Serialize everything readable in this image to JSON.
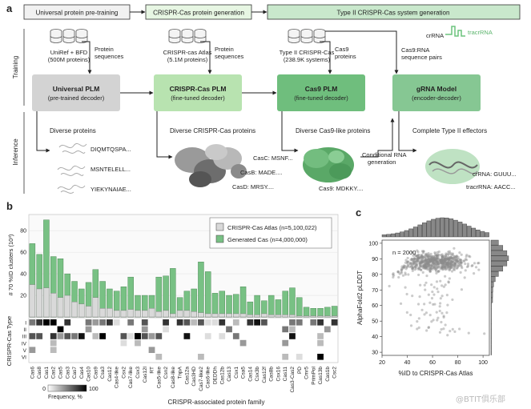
{
  "panel_labels": {
    "a": "a",
    "b": "b",
    "c": "c"
  },
  "panel_a": {
    "stages": [
      "Universal protein pre-training",
      "CRISPR-Cas protein generation",
      "Type II CRISPR-Cas system generation"
    ],
    "row_labels": {
      "training": "Training",
      "inference": "Inference"
    },
    "data_sources": [
      {
        "line1": "UniRef + BFD",
        "line2": "(500M proteins)",
        "arrow_label_1": "Protein",
        "arrow_label_2": "sequences"
      },
      {
        "line1": "CRISPR-cas Atlas",
        "line2": "(5.1M proteins)",
        "arrow_label_1": "Protein",
        "arrow_label_2": "sequences"
      },
      {
        "line1": "Type II CRISPR-Cas",
        "line2": "(238.9K systems)",
        "arrow_label_1": "Cas9",
        "arrow_label_2": "proteins"
      }
    ],
    "pairs_label_1": "Cas9:RNA",
    "pairs_label_2": "sequence pairs",
    "rna_labels": {
      "cr": "crRNA",
      "tracr": "tracrRNA"
    },
    "models": [
      {
        "title": "Universal PLM",
        "subtitle": "(pre-trained decoder)",
        "color": "#d3d3d3"
      },
      {
        "title": "CRISPR-Cas PLM",
        "subtitle": "(fine-tuned decoder)",
        "color": "#b8e3b0"
      },
      {
        "title": "Cas9 PLM",
        "subtitle": "(fine-tuned decoder)",
        "color": "#6fbe7d"
      },
      {
        "title": "gRNA Model",
        "subtitle": "(encoder-decoder)",
        "color": "#86c793"
      }
    ],
    "outputs": [
      {
        "title": "Diverse proteins",
        "labels": [
          "DIQMTQSPA...",
          "MSNTELELL...",
          "YIEKYNAIAE..."
        ]
      },
      {
        "title": "Diverse CRISPR-Cas proteins",
        "labels": [
          "CasC: MSNF...",
          "CasB: MADE....",
          "CasD: MRSY...."
        ]
      },
      {
        "title": "Diverse Cas9-like proteins",
        "labels": [
          "Cas9: MDKKY...."
        ]
      },
      {
        "title": "Complete Type II effectors",
        "labels": [
          "crRNA: GUUU...",
          "tracrRNA: AACC..."
        ]
      }
    ],
    "conditional_1": "Conditional RNA",
    "conditional_2": "generation"
  },
  "chart_data": [
    {
      "type": "bar",
      "ylabel": "# 70 %ID clusters (10³)",
      "xlabel": "CRISPR-associated protein family",
      "ylim": [
        0,
        95
      ],
      "yticks": [
        20,
        40,
        60,
        80
      ],
      "categories": [
        "Cas6",
        "Cas8",
        "Cas1",
        "Cas2",
        "Cas5",
        "Cas3",
        "Cas7",
        "Cas4",
        "Cas10",
        "Cas9",
        "Csa3",
        "Cas12",
        "Cas4-like",
        "Csx2",
        "Cas7-like",
        "Csx3",
        "Cas12l",
        "RT",
        "Cas5-like",
        "Csn2",
        "Cas8-like",
        "TnpA",
        "Cas12a",
        "Cas3HD",
        "Cas7-like2",
        "Cas6-like",
        "DEDDh",
        "Cas12b",
        "Cas13",
        "Csx1",
        "Csa5",
        "Cas14",
        "Csx3b",
        "Cas12f",
        "Cas8b",
        "Csx16",
        "Cas11",
        "Cas3-Cas2",
        "PD",
        "Cmr5",
        "PrimPol",
        "Cas13b",
        "Cas1b",
        "Csc2"
      ],
      "series": [
        {
          "name": "CRISPR-Cas Atlas (n=5,100,022)",
          "color": "#d9d9d9",
          "values": [
            30,
            26,
            27,
            22,
            18,
            20,
            14,
            12,
            10,
            18,
            8,
            8,
            6,
            6,
            7,
            6,
            6,
            8,
            5,
            6,
            3,
            6,
            6,
            5,
            4,
            3,
            3,
            3,
            3,
            3,
            3,
            2,
            2,
            3,
            2,
            2,
            2,
            2,
            1,
            1,
            1,
            1,
            1,
            1
          ]
        },
        {
          "name": "Generated Cas (n=4,000,000)",
          "color": "#78c184",
          "values": [
            68,
            58,
            90,
            56,
            54,
            40,
            33,
            26,
            32,
            44,
            33,
            26,
            24,
            28,
            37,
            20,
            20,
            20,
            37,
            38,
            45,
            18,
            24,
            26,
            51,
            42,
            22,
            24,
            20,
            21,
            28,
            14,
            20,
            15,
            20,
            16,
            24,
            27,
            18,
            9,
            8,
            8,
            9,
            10
          ]
        }
      ],
      "legend_position": "top-right",
      "grid": false
    },
    {
      "type": "heatmap",
      "ylabel": "CRISPR-Cas Type",
      "rows": [
        "I",
        "II",
        "III",
        "IV",
        "V",
        "VI"
      ],
      "colorbar_label": "Frequency, %",
      "colorbar_range": [
        0,
        100
      ]
    },
    {
      "type": "scatter",
      "xlabel": "%ID to CRISPR-Cas Atlas",
      "ylabel": "AlphaFold2 pLDDT",
      "xlim": [
        20,
        105
      ],
      "ylim": [
        28,
        102
      ],
      "xticks": [
        20,
        40,
        60,
        80,
        100
      ],
      "yticks": [
        30,
        40,
        50,
        60,
        70,
        80,
        90,
        100
      ],
      "annotation": "n = 2000",
      "point_color": "#8c8c8c"
    }
  ],
  "watermark": "@BTIT俱乐部"
}
